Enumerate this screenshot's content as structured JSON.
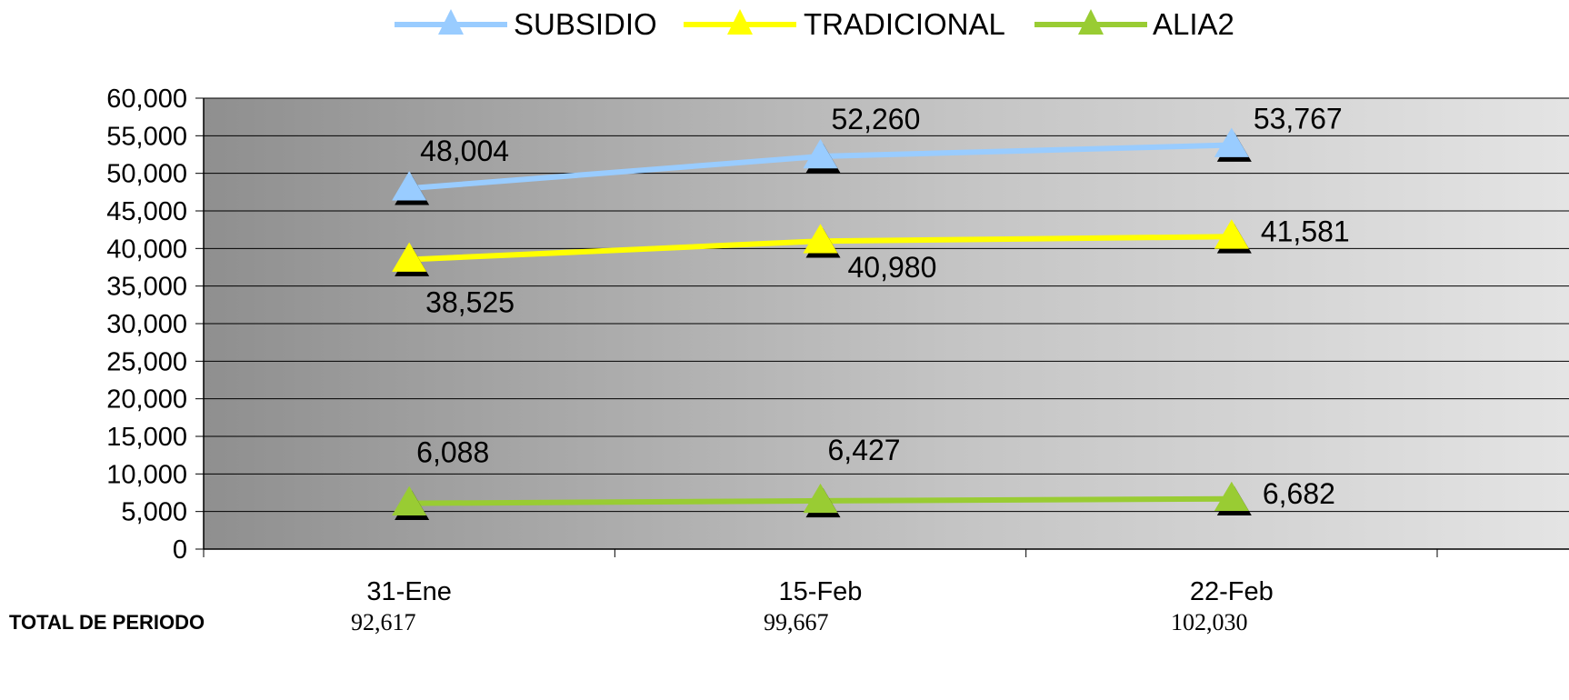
{
  "chart_data": {
    "type": "line",
    "categories": [
      "31-Ene",
      "15-Feb",
      "22-Feb"
    ],
    "series": [
      {
        "name": "SUBSIDIO",
        "values": [
          48004,
          52260,
          53767
        ],
        "labels": [
          "48,004",
          "52,260",
          "53,767"
        ],
        "color": "#99ccff"
      },
      {
        "name": "TRADICIONAL",
        "values": [
          38525,
          40980,
          41581
        ],
        "labels": [
          "38,525",
          "40,980",
          "41,581"
        ],
        "color": "#ffff00"
      },
      {
        "name": "ALIA2",
        "values": [
          6088,
          6427,
          6682
        ],
        "labels": [
          "6,088",
          "6,427",
          "6,682"
        ],
        "color": "#99cc33"
      }
    ],
    "yticks": [
      "0",
      "5,000",
      "10,000",
      "15,000",
      "20,000",
      "25,000",
      "30,000",
      "35,000",
      "40,000",
      "45,000",
      "50,000",
      "55,000",
      "60,000"
    ],
    "ylim": [
      0,
      60000
    ],
    "legend_position": "top",
    "grid": true,
    "plot_background": "gradient dark gray to light gray"
  },
  "totals": {
    "label": "TOTAL DE PERIODO",
    "values": [
      "92,617",
      "99,667",
      "102,030"
    ]
  }
}
